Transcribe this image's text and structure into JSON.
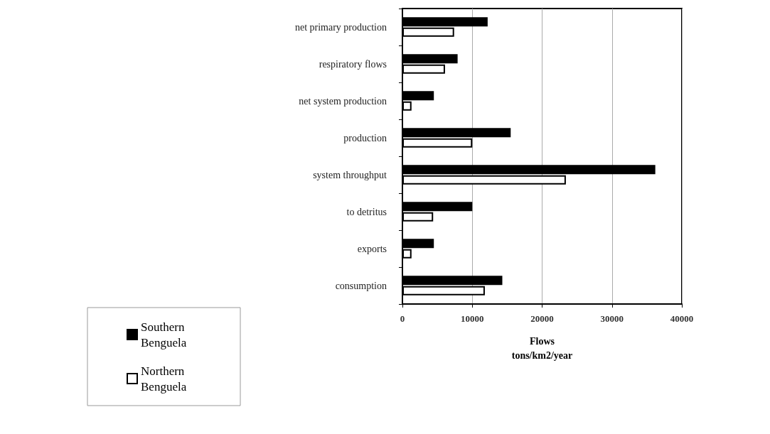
{
  "chart_data": {
    "type": "bar",
    "orientation": "horizontal",
    "categories": [
      "net primary production",
      "respiratory flows",
      "net system production",
      "production",
      "system throughput",
      "to detritus",
      "exports",
      "consumption"
    ],
    "series": [
      {
        "name": "Southern Benguela",
        "color": "#000000",
        "values": [
          12200,
          7900,
          4500,
          15500,
          36200,
          10000,
          4500,
          14300
        ]
      },
      {
        "name": "Northern Benguela",
        "color": "#ffffff",
        "values": [
          7400,
          6100,
          1300,
          10000,
          23400,
          4400,
          1300,
          11800
        ]
      }
    ],
    "xlabel": "Flows\ntons/km2/year",
    "xlim": [
      0,
      40000
    ],
    "xticks": [
      0,
      10000,
      20000,
      30000,
      40000
    ],
    "grid": "x",
    "legend": "bottom left"
  }
}
